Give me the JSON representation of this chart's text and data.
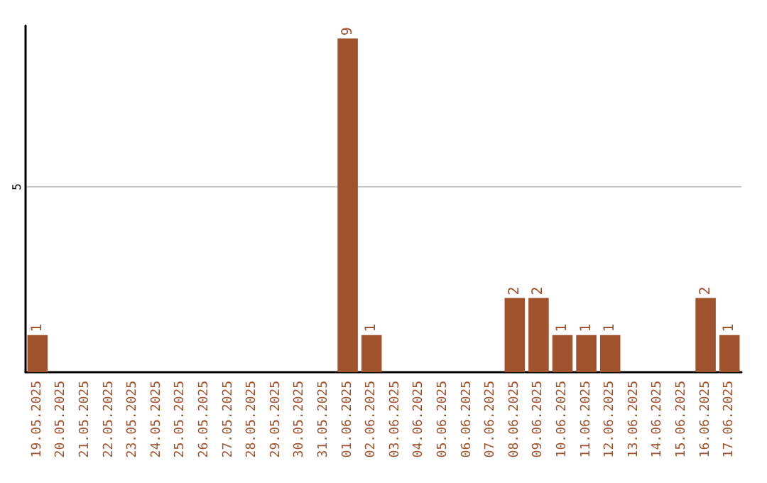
{
  "chart_data": {
    "type": "bar",
    "categories": [
      "19.05.2025",
      "20.05.2025",
      "21.05.2025",
      "22.05.2025",
      "23.05.2025",
      "24.05.2025",
      "25.05.2025",
      "26.05.2025",
      "27.05.2025",
      "28.05.2025",
      "29.05.2025",
      "30.05.2025",
      "31.05.2025",
      "01.06.2025",
      "02.06.2025",
      "03.06.2025",
      "04.06.2025",
      "05.06.2025",
      "06.06.2025",
      "07.06.2025",
      "08.06.2025",
      "09.06.2025",
      "10.06.2025",
      "11.06.2025",
      "12.06.2025",
      "13.06.2025",
      "14.06.2025",
      "15.06.2025",
      "16.06.2025",
      "17.06.2025"
    ],
    "values": [
      1,
      0,
      0,
      0,
      0,
      0,
      0,
      0,
      0,
      0,
      0,
      0,
      0,
      9,
      1,
      0,
      0,
      0,
      0,
      0,
      2,
      2,
      1,
      1,
      1,
      0,
      0,
      0,
      2,
      1
    ],
    "value_labels": [
      "1",
      null,
      null,
      null,
      null,
      null,
      null,
      null,
      null,
      null,
      null,
      null,
      null,
      "9",
      "1",
      null,
      null,
      null,
      null,
      null,
      "2",
      "2",
      "1",
      "1",
      "1",
      null,
      null,
      null,
      "2",
      "1"
    ],
    "color": "#a0522d",
    "ylim": [
      0,
      9.35
    ],
    "yticks": [
      5
    ],
    "grid": "y"
  }
}
